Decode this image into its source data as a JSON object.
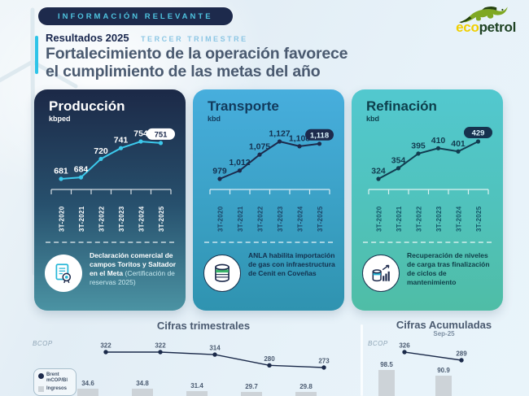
{
  "colors": {
    "brand_yellow": "#f0cf00",
    "brand_green": "#1e4223",
    "navy": "#1d2a4c",
    "cyan": "#2ec4e8",
    "light_blue_text": "#8cc6e4",
    "slate_text": "#4a5a70",
    "bar_gray": "#cdd3d8",
    "card_produccion_top": "#1c2947",
    "card_produccion_bottom": "#4b93a3",
    "card_transporte_top": "#47aedd",
    "card_transporte_bottom": "#2f93b0",
    "card_refinacion_top": "#52c8cf",
    "card_refinacion_bottom": "#4fbda6"
  },
  "header": {
    "badge": "INFORMACIÓN RELEVANTE",
    "results_label": "Resultados 2025",
    "quarter_label": "TERCER TRIMESTRE",
    "title_line1": "Fortalecimiento de la operación favorece",
    "title_line2": "el cumplimiento de las metas del año",
    "logo_eco": "eco",
    "logo_petrol": "petrol"
  },
  "cards": [
    {
      "icon": "certificate-seal-icon",
      "note_bold": "Declaración comercial de campos Toritos y Saltador en el Meta",
      "note_light": "(Certificación de reservas 2025)"
    },
    {
      "icon": "storage-tank-icon",
      "note_bold": "ANLA habilita importación de gas con infraestructura de Cenit en Coveñas"
    },
    {
      "icon": "load-recovery-icon",
      "note_bold": "Recuperación de niveles de carga tras finalización de ciclos de mantenimiento"
    }
  ],
  "bottom": {
    "quarterly": {
      "title": "Cifras trimestrales",
      "axis_label": "BCOP",
      "legend": [
        {
          "label": "Brent mCOP/Bl"
        },
        {
          "label": "Ingresos"
        }
      ]
    },
    "accumulated": {
      "title": "Cifras Acumuladas",
      "subtitle": "Sep-25",
      "axis_label": "BCOP"
    }
  },
  "chart_data": [
    {
      "id": "produccion",
      "type": "line",
      "title": "Producción",
      "unit": "kbped",
      "categories": [
        "3T-2020",
        "3T-2021",
        "3T-2022",
        "3T-2023",
        "3T-2024",
        "3T-2025"
      ],
      "values": [
        681,
        684,
        720,
        741,
        754,
        751
      ],
      "value_labels": [
        "681",
        "684",
        "720",
        "741",
        "754",
        "751"
      ],
      "highlight_index": 5
    },
    {
      "id": "transporte",
      "type": "line",
      "title": "Transporte",
      "unit": "kbd",
      "categories": [
        "3T-2020",
        "3T-2021",
        "3T-2022",
        "3T-2023",
        "3T-2024",
        "3T-2025"
      ],
      "values": [
        979,
        1012,
        1075,
        1127,
        1108,
        1118
      ],
      "value_labels": [
        "979",
        "1,012",
        "1,075",
        "1,127",
        "1,108",
        "1,118"
      ],
      "highlight_index": 5
    },
    {
      "id": "refinacion",
      "type": "line",
      "title": "Refinación",
      "unit": "kbd",
      "categories": [
        "3T-2020",
        "3T-2021",
        "3T-2022",
        "3T-2023",
        "3T-2024",
        "3T-2025"
      ],
      "values": [
        324,
        354,
        395,
        410,
        401,
        429
      ],
      "value_labels": [
        "324",
        "354",
        "395",
        "410",
        "401",
        "429"
      ],
      "highlight_index": 5
    },
    {
      "id": "cifras-trimestrales",
      "type": "line+bar",
      "title": "Cifras trimestrales",
      "unit": "BCOP",
      "series": [
        {
          "name": "Brent mCOP/Bl",
          "type": "line",
          "values": [
            322,
            322,
            314,
            280,
            273
          ],
          "value_labels": [
            "322",
            "322",
            "314",
            "280",
            "273"
          ]
        },
        {
          "name": "Ingresos",
          "type": "bar",
          "values": [
            34.6,
            34.8,
            31.4,
            29.7,
            29.8
          ],
          "value_labels": [
            "34.6",
            "34.8",
            "31.4",
            "29.7",
            "29.8"
          ]
        }
      ]
    },
    {
      "id": "cifras-acumuladas",
      "type": "line+bar",
      "title": "Cifras Acumuladas",
      "subtitle": "Sep-25",
      "unit": "BCOP",
      "series": [
        {
          "name": "Brent mCOP/Bl",
          "type": "line",
          "values": [
            326,
            289
          ],
          "value_labels": [
            "326",
            "289"
          ]
        },
        {
          "name": "Ingresos",
          "type": "bar",
          "values": [
            98.5,
            90.9
          ],
          "value_labels": [
            "98.5",
            "90.9"
          ]
        }
      ]
    }
  ]
}
